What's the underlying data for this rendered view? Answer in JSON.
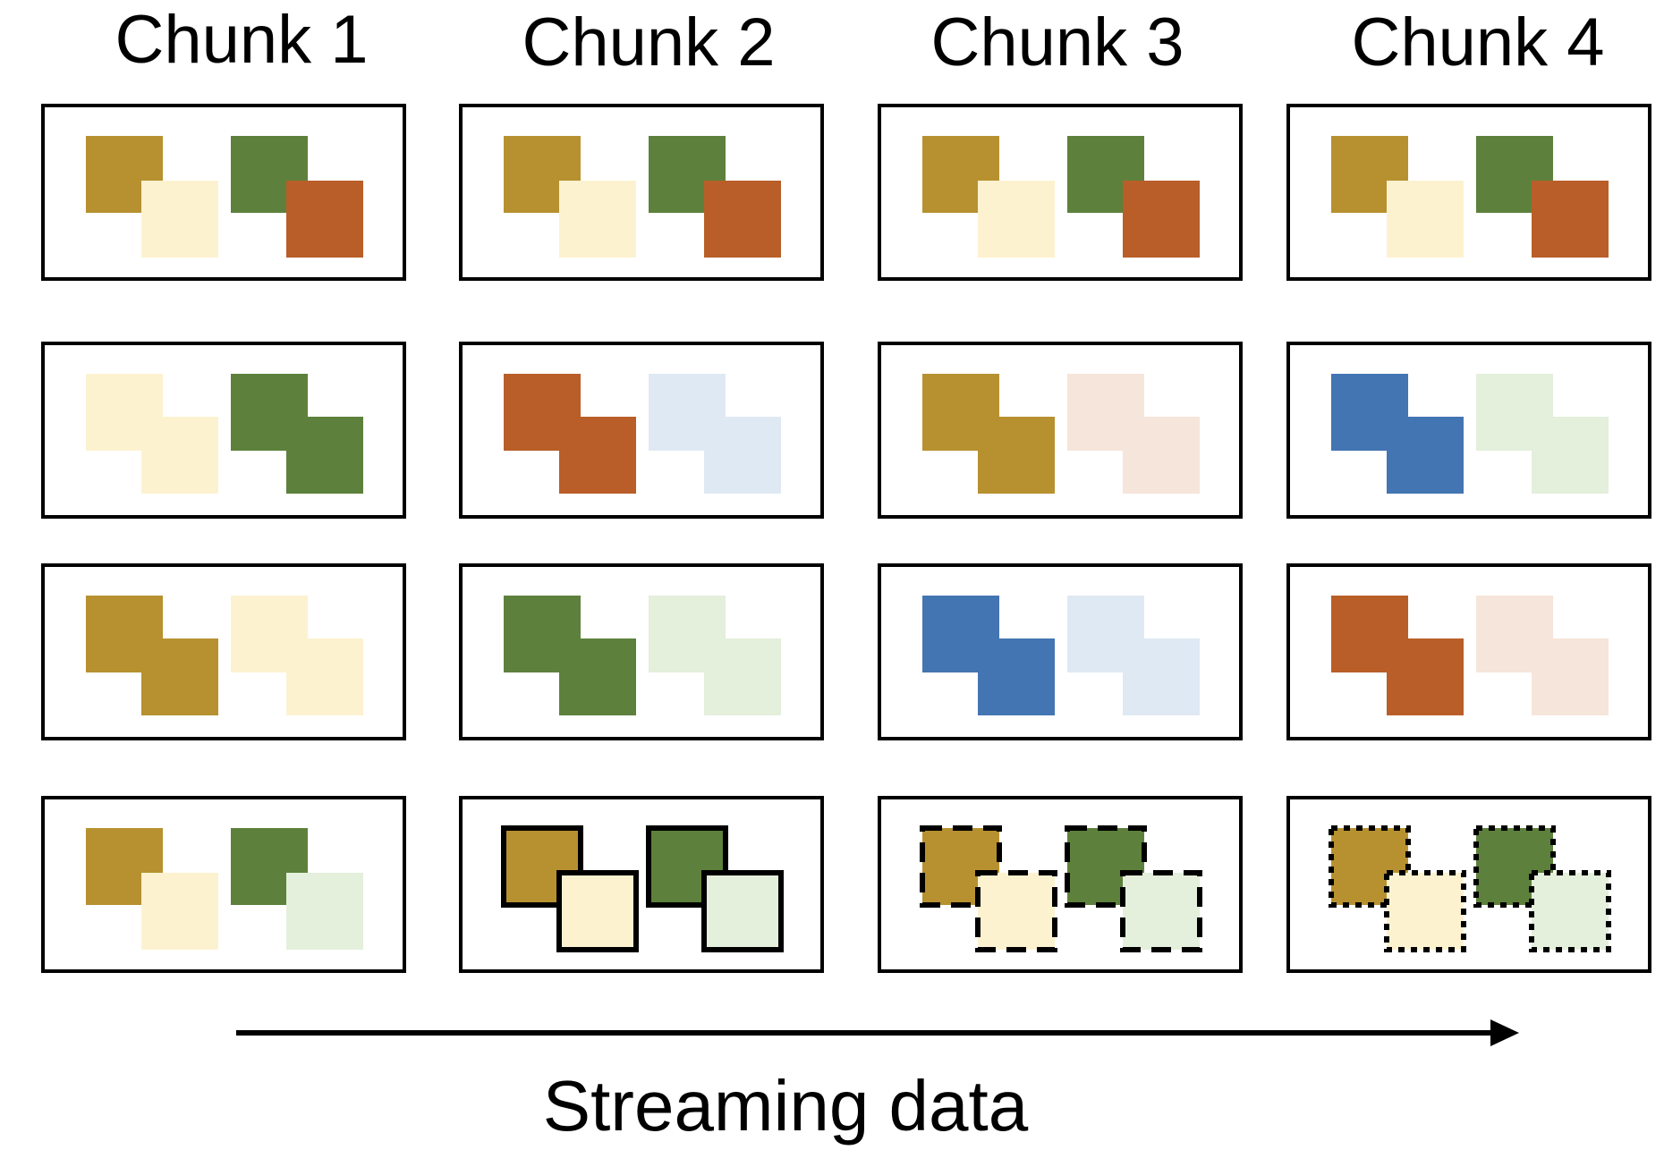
{
  "chunks": [
    {
      "title": "Chunk 1",
      "panels": [
        {
          "pattern": "overlap",
          "pairs": [
            [
              "gold",
              "cream"
            ],
            [
              "green",
              "orange"
            ]
          ]
        },
        {
          "pattern": "stair",
          "pairs": [
            [
              "cream",
              "cream"
            ],
            [
              "green",
              "green"
            ]
          ]
        },
        {
          "pattern": "stair",
          "pairs": [
            [
              "gold",
              "gold"
            ],
            [
              "cream",
              "cream"
            ]
          ]
        },
        {
          "pattern": "overlap",
          "pairs": [
            [
              "gold",
              "cream"
            ],
            [
              "green",
              "lightgreen"
            ]
          ],
          "border": "none"
        }
      ]
    },
    {
      "title": "Chunk 2",
      "panels": [
        {
          "pattern": "overlap",
          "pairs": [
            [
              "gold",
              "cream"
            ],
            [
              "green",
              "orange"
            ]
          ]
        },
        {
          "pattern": "stair",
          "pairs": [
            [
              "orange",
              "orange"
            ],
            [
              "lightblue",
              "lightblue"
            ]
          ]
        },
        {
          "pattern": "stair",
          "pairs": [
            [
              "green",
              "green"
            ],
            [
              "lightgreen",
              "lightgreen"
            ]
          ]
        },
        {
          "pattern": "overlap",
          "pairs": [
            [
              "gold",
              "cream"
            ],
            [
              "green",
              "lightgreen"
            ]
          ],
          "border": "solid"
        }
      ]
    },
    {
      "title": "Chunk 3",
      "panels": [
        {
          "pattern": "overlap",
          "pairs": [
            [
              "gold",
              "cream"
            ],
            [
              "green",
              "orange"
            ]
          ]
        },
        {
          "pattern": "stair",
          "pairs": [
            [
              "gold",
              "gold"
            ],
            [
              "peach",
              "peach"
            ]
          ]
        },
        {
          "pattern": "stair",
          "pairs": [
            [
              "blue",
              "blue"
            ],
            [
              "lightblue",
              "lightblue"
            ]
          ]
        },
        {
          "pattern": "overlap",
          "pairs": [
            [
              "gold",
              "cream"
            ],
            [
              "green",
              "lightgreen"
            ]
          ],
          "border": "dashed"
        }
      ]
    },
    {
      "title": "Chunk 4",
      "panels": [
        {
          "pattern": "overlap",
          "pairs": [
            [
              "gold",
              "cream"
            ],
            [
              "green",
              "orange"
            ]
          ]
        },
        {
          "pattern": "stair",
          "pairs": [
            [
              "blue",
              "blue"
            ],
            [
              "lightgreen",
              "lightgreen"
            ]
          ]
        },
        {
          "pattern": "stair",
          "pairs": [
            [
              "orange",
              "orange"
            ],
            [
              "peach",
              "peach"
            ]
          ]
        },
        {
          "pattern": "overlap",
          "pairs": [
            [
              "gold",
              "cream"
            ],
            [
              "green",
              "lightgreen"
            ]
          ],
          "border": "dotted"
        }
      ]
    }
  ],
  "colors": {
    "gold": "#b79130",
    "cream": "#fdf2d0",
    "green": "#5d813c",
    "orange": "#b95e28",
    "lightgreen": "#e4efdc",
    "lightblue": "#dfe9f4",
    "peach": "#f6e5da",
    "blue": "#4375b2"
  },
  "footer": {
    "label": "Streaming data"
  }
}
